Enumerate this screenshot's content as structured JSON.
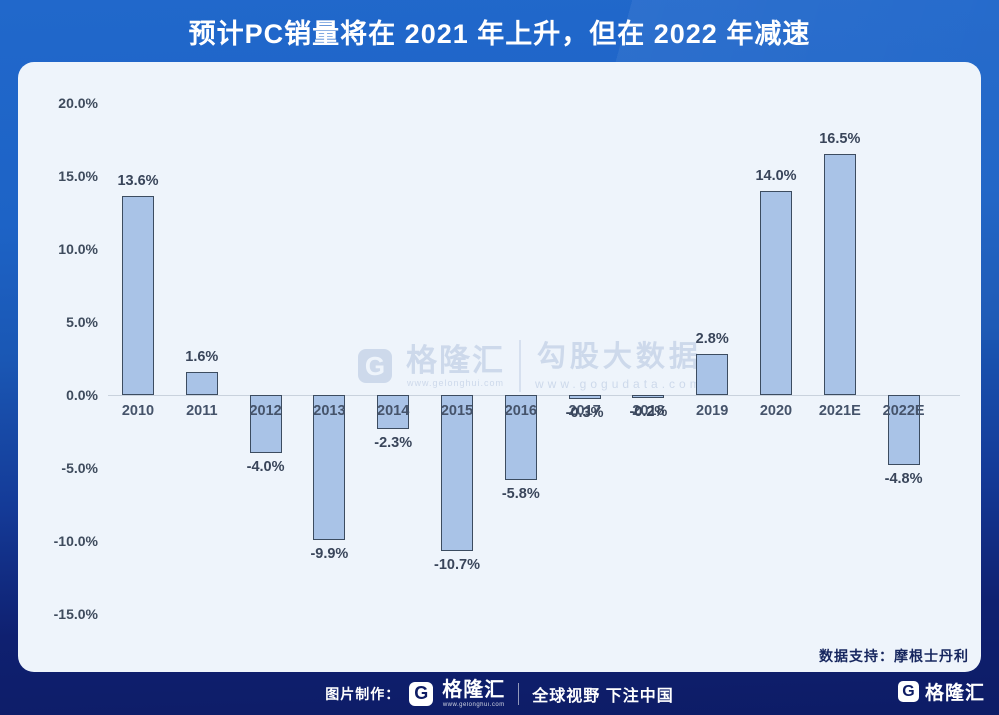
{
  "header": {
    "title": "预计PC销量将在 2021 年上升，但在 2022 年减速"
  },
  "chart_data": {
    "type": "bar",
    "title": "预计PC销量将在 2021 年上升，但在 2022 年减速",
    "categories": [
      "2010",
      "2011",
      "2012",
      "2013",
      "2014",
      "2015",
      "2016",
      "2017",
      "2018",
      "2019",
      "2020",
      "2021E",
      "2022E"
    ],
    "values": [
      13.6,
      1.6,
      -4.0,
      -9.9,
      -2.3,
      -10.7,
      -5.8,
      -0.3,
      -0.2,
      2.8,
      14.0,
      16.5,
      -4.8
    ],
    "labels": [
      "13.6%",
      "1.6%",
      "-4.0%",
      "-9.9%",
      "-2.3%",
      "-10.7%",
      "-5.8%",
      "-0.3%",
      "-0.2%",
      "2.8%",
      "14.0%",
      "16.5%",
      "-4.8%"
    ],
    "y_ticks": [
      {
        "label": "20.0%",
        "value": 20
      },
      {
        "label": "15.0%",
        "value": 15
      },
      {
        "label": "10.0%",
        "value": 10
      },
      {
        "label": "5.0%",
        "value": 5
      },
      {
        "label": "0.0%",
        "value": 0
      },
      {
        "label": "-5.0%",
        "value": -5
      },
      {
        "label": "-10.0%",
        "value": -10
      },
      {
        "label": "-15.0%",
        "value": -15
      }
    ],
    "ylim": [
      -17,
      22
    ],
    "grid": false,
    "legend": null,
    "xlabel": "",
    "ylabel": ""
  },
  "watermark": {
    "logo_letter": "G",
    "brand": "格隆汇",
    "brand_url": "www.gelonghui.com",
    "partner": "勾股大数据",
    "partner_url": "www.gogudata.com"
  },
  "credit": {
    "text": "数据支持：摩根士丹利"
  },
  "footer": {
    "made_by": "图片制作：",
    "logo_letter": "G",
    "brand": "格隆汇",
    "brand_url": "www.gelonghui.com",
    "slogan": "全球视野 下注中国",
    "corner_logo_letter": "G",
    "corner_brand": "格隆汇"
  },
  "colors": {
    "header_blue": "#1e65c8",
    "page_navy": "#0d1c66",
    "card_bg": "#eef4fb",
    "bar_fill": "#a9c3e7",
    "bar_border": "#3c4c60",
    "axis_line": "#c9d2dd",
    "text_dark": "#3e4b5d",
    "watermark": "#cdd9eb"
  }
}
